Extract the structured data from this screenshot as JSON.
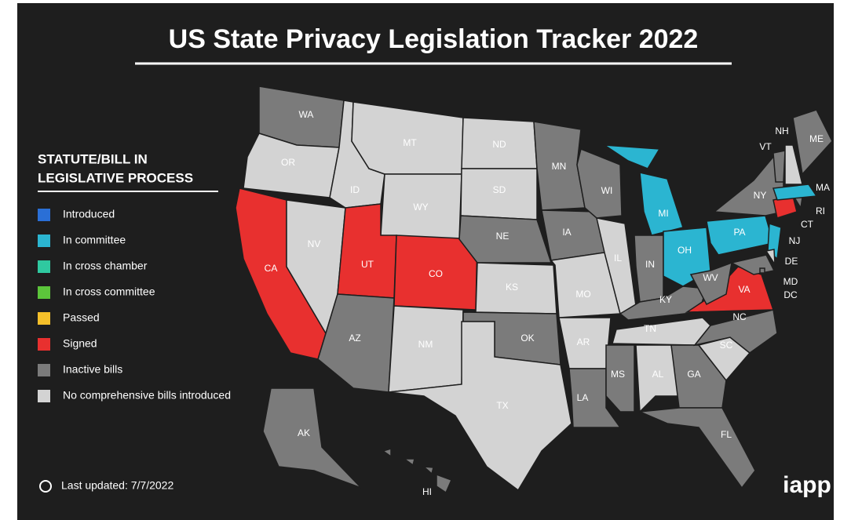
{
  "header": {
    "title": "US State Privacy Legislation Tracker 2022"
  },
  "legend": {
    "heading": [
      "STATUTE/BILL IN",
      "LEGISLATIVE PROCESS"
    ],
    "items": [
      {
        "label": "Introduced",
        "color": "#2a6fd6"
      },
      {
        "label": "In committee",
        "color": "#2bb5d1"
      },
      {
        "label": "In cross chamber",
        "color": "#2fc9a0"
      },
      {
        "label": "In cross committee",
        "color": "#5cc53b"
      },
      {
        "label": "Passed",
        "color": "#f5c02a"
      },
      {
        "label": "Signed",
        "color": "#e8302f"
      },
      {
        "label": "Inactive bills",
        "color": "#7b7b7b"
      },
      {
        "label": "No comprehensive bills introduced",
        "color": "#d3d3d3"
      }
    ]
  },
  "states": [
    {
      "label": "WA",
      "status": "Inactive bills"
    },
    {
      "label": "OR",
      "status": "No comprehensive bills introduced"
    },
    {
      "label": "CA",
      "status": "Signed"
    },
    {
      "label": "NV",
      "status": "No comprehensive bills introduced"
    },
    {
      "label": "ID",
      "status": "No comprehensive bills introduced"
    },
    {
      "label": "MT",
      "status": "No comprehensive bills introduced"
    },
    {
      "label": "WY",
      "status": "No comprehensive bills introduced"
    },
    {
      "label": "UT",
      "status": "Signed"
    },
    {
      "label": "CO",
      "status": "Signed"
    },
    {
      "label": "AZ",
      "status": "Inactive bills"
    },
    {
      "label": "NM",
      "status": "No comprehensive bills introduced"
    },
    {
      "label": "ND",
      "status": "No comprehensive bills introduced"
    },
    {
      "label": "SD",
      "status": "No comprehensive bills introduced"
    },
    {
      "label": "NE",
      "status": "Inactive bills"
    },
    {
      "label": "KS",
      "status": "No comprehensive bills introduced"
    },
    {
      "label": "OK",
      "status": "Inactive bills"
    },
    {
      "label": "TX",
      "status": "No comprehensive bills introduced"
    },
    {
      "label": "MN",
      "status": "Inactive bills"
    },
    {
      "label": "IA",
      "status": "Inactive bills"
    },
    {
      "label": "MO",
      "status": "No comprehensive bills introduced"
    },
    {
      "label": "AR",
      "status": "No comprehensive bills introduced"
    },
    {
      "label": "LA",
      "status": "Inactive bills"
    },
    {
      "label": "WI",
      "status": "Inactive bills"
    },
    {
      "label": "IL",
      "status": "No comprehensive bills introduced"
    },
    {
      "label": "IN",
      "status": "Inactive bills"
    },
    {
      "label": "MI",
      "status": "In committee"
    },
    {
      "label": "OH",
      "status": "In committee"
    },
    {
      "label": "KY",
      "status": "Inactive bills"
    },
    {
      "label": "TN",
      "status": "No comprehensive bills introduced"
    },
    {
      "label": "MS",
      "status": "Inactive bills"
    },
    {
      "label": "AL",
      "status": "No comprehensive bills introduced"
    },
    {
      "label": "GA",
      "status": "Inactive bills"
    },
    {
      "label": "FL",
      "status": "Inactive bills"
    },
    {
      "label": "SC",
      "status": "No comprehensive bills introduced"
    },
    {
      "label": "NC",
      "status": "Inactive bills"
    },
    {
      "label": "VA",
      "status": "Signed"
    },
    {
      "label": "WV",
      "status": "Inactive bills"
    },
    {
      "label": "PA",
      "status": "In committee"
    },
    {
      "label": "NY",
      "status": "Inactive bills"
    },
    {
      "label": "NJ",
      "status": "In committee"
    },
    {
      "label": "DE",
      "status": "No comprehensive bills introduced"
    },
    {
      "label": "MD",
      "status": "Inactive bills"
    },
    {
      "label": "DC",
      "status": "Inactive bills"
    },
    {
      "label": "CT",
      "status": "Signed"
    },
    {
      "label": "RI",
      "status": "Inactive bills"
    },
    {
      "label": "MA",
      "status": "In committee"
    },
    {
      "label": "VT",
      "status": "Inactive bills"
    },
    {
      "label": "NH",
      "status": "No comprehensive bills introduced"
    },
    {
      "label": "ME",
      "status": "Inactive bills"
    },
    {
      "label": "AK",
      "status": "Inactive bills"
    },
    {
      "label": "HI",
      "status": "Inactive bills"
    }
  ],
  "footer": {
    "updated": "Last updated: 7/7/2022",
    "logo": "iapp"
  }
}
